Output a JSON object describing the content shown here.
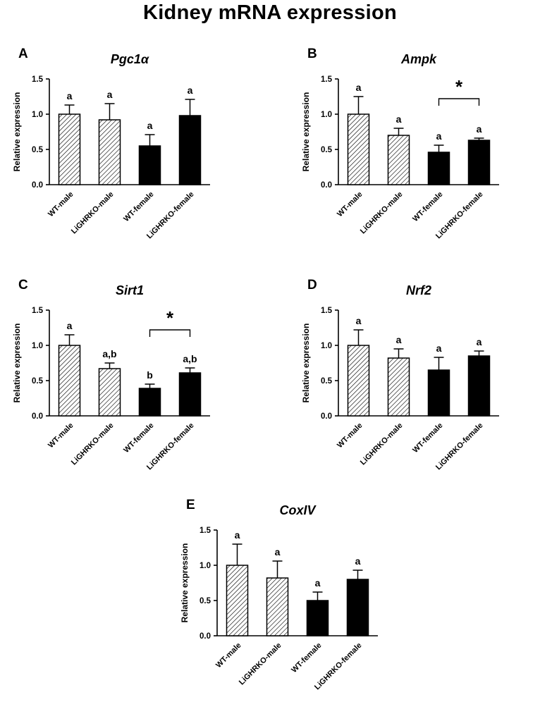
{
  "figure_title": "Kidney mRNA expression",
  "chart_data": [
    {
      "panel": "A",
      "type": "bar",
      "title": "Pgc1α",
      "ylabel": "Relative expression",
      "categories": [
        "WT-male",
        "LiGHRKO-male",
        "WT-female",
        "LiGHRKO-female"
      ],
      "bar_styles": [
        "hatched",
        "hatched",
        "solid",
        "solid"
      ],
      "values": [
        1.0,
        0.92,
        0.55,
        0.98
      ],
      "errors": [
        0.13,
        0.23,
        0.16,
        0.23
      ],
      "bar_labels": [
        "a",
        "a",
        "a",
        "a"
      ],
      "ylim": [
        0,
        1.5
      ],
      "yticks": [
        0.0,
        0.5,
        1.0,
        1.5
      ]
    },
    {
      "panel": "B",
      "type": "bar",
      "title": "Ampk",
      "ylabel": "Relative expression",
      "categories": [
        "WT-male",
        "LiGHRKO-male",
        "WT-female",
        "LiGHRKO-female"
      ],
      "bar_styles": [
        "hatched",
        "hatched",
        "solid",
        "solid"
      ],
      "values": [
        1.0,
        0.7,
        0.46,
        0.63
      ],
      "errors": [
        0.25,
        0.1,
        0.1,
        0.03
      ],
      "bar_labels": [
        "a",
        "a",
        "a",
        "a"
      ],
      "ylim": [
        0,
        1.5
      ],
      "yticks": [
        0.0,
        0.5,
        1.0,
        1.5
      ],
      "sig_bracket": {
        "from": 2,
        "to": 3,
        "y": 1.22,
        "label": "*"
      }
    },
    {
      "panel": "C",
      "type": "bar",
      "title": "Sirt1",
      "ylabel": "Relative expression",
      "categories": [
        "WT-male",
        "LiGHRKO-male",
        "WT-female",
        "LiGHRKO-female"
      ],
      "bar_styles": [
        "hatched",
        "hatched",
        "solid",
        "solid"
      ],
      "values": [
        1.0,
        0.67,
        0.39,
        0.61
      ],
      "errors": [
        0.15,
        0.08,
        0.06,
        0.07
      ],
      "bar_labels": [
        "a",
        "a,b",
        "b",
        "a,b"
      ],
      "ylim": [
        0,
        1.5
      ],
      "yticks": [
        0.0,
        0.5,
        1.0,
        1.5
      ],
      "sig_bracket": {
        "from": 2,
        "to": 3,
        "y": 1.22,
        "label": "*"
      }
    },
    {
      "panel": "D",
      "type": "bar",
      "title": "Nrf2",
      "ylabel": "Relative expression",
      "categories": [
        "WT-male",
        "LiGHRKO-male",
        "WT-female",
        "LiGHRKO-female"
      ],
      "bar_styles": [
        "hatched",
        "hatched",
        "solid",
        "solid"
      ],
      "values": [
        1.0,
        0.82,
        0.65,
        0.85
      ],
      "errors": [
        0.22,
        0.13,
        0.18,
        0.07
      ],
      "bar_labels": [
        "a",
        "a",
        "a",
        "a"
      ],
      "ylim": [
        0,
        1.5
      ],
      "yticks": [
        0.0,
        0.5,
        1.0,
        1.5
      ]
    },
    {
      "panel": "E",
      "type": "bar",
      "title": "CoxIV",
      "ylabel": "Relative expression",
      "categories": [
        "WT-male",
        "LiGHRKO-male",
        "WT-female",
        "LiGHRKO-female"
      ],
      "bar_styles": [
        "hatched",
        "hatched",
        "solid",
        "solid"
      ],
      "values": [
        1.0,
        0.82,
        0.5,
        0.8
      ],
      "errors": [
        0.3,
        0.24,
        0.12,
        0.13
      ],
      "bar_labels": [
        "a",
        "a",
        "a",
        "a"
      ],
      "ylim": [
        0,
        1.5
      ],
      "yticks": [
        0.0,
        0.5,
        1.0,
        1.5
      ]
    }
  ]
}
